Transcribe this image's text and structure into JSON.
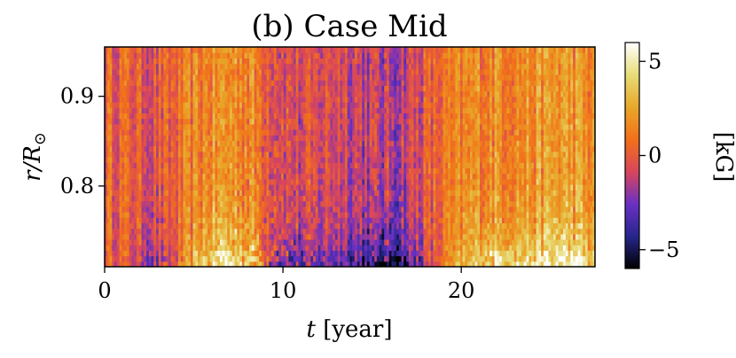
{
  "chart_data": {
    "type": "heatmap",
    "title": "(b) Case Mid",
    "xlabel_var": "t",
    "xlabel_unit": " [year]",
    "ylabel_var": "r/R",
    "ylabel_sub": "⊙",
    "x_ticks": [
      0,
      10,
      20
    ],
    "y_ticks": [
      0.8,
      0.9
    ],
    "y_tick_labels": [
      "0.8",
      "0.9"
    ],
    "xlim": [
      0,
      27.5
    ],
    "ylim": [
      0.71,
      0.955
    ],
    "colorbar": {
      "label": "[kG]",
      "range": [
        -6,
        6
      ],
      "ticks": [
        -5,
        0,
        5
      ],
      "tick_labels": [
        "−5",
        "0",
        "5"
      ],
      "colormap": "CMRmap",
      "colormap_stops": [
        "#000000",
        "#26268c",
        "#6b30c4",
        "#d9465c",
        "#f2701a",
        "#e8a82a",
        "#e8dc78",
        "#ffffff"
      ]
    },
    "field_description": "Mostly near zero (orange-red) with vertical streaks; strong positive (yellow) near base around t=6-9, 20-27; strong negative (blue) near base around t=9-12 and t=14-17",
    "features": [
      {
        "t_center": 7.5,
        "t_width": 3.0,
        "value": 4.5
      },
      {
        "t_center": 10.5,
        "t_width": 2.2,
        "value": -4.5
      },
      {
        "t_center": 15.8,
        "t_width": 2.5,
        "value": -5.0
      },
      {
        "t_center": 22.0,
        "t_width": 3.0,
        "value": 3.5
      },
      {
        "t_center": 26.0,
        "t_width": 2.0,
        "value": 4.0
      },
      {
        "t_center": 3.0,
        "t_width": 1.5,
        "value": -2.5
      }
    ]
  }
}
